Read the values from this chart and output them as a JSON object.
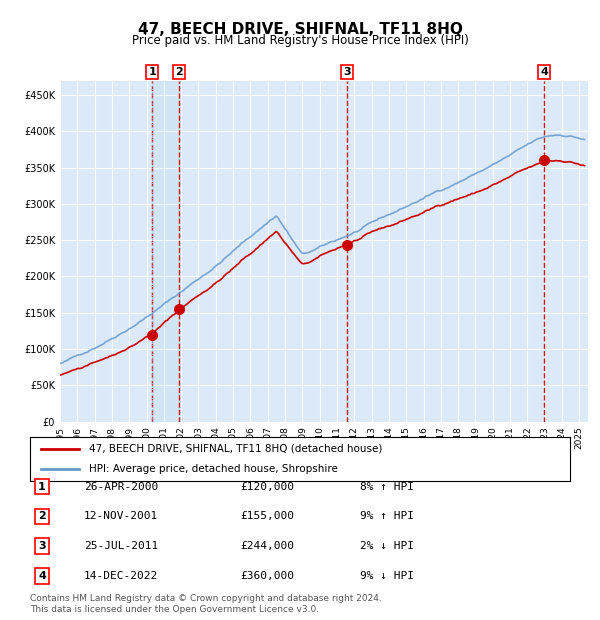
{
  "title": "47, BEECH DRIVE, SHIFNAL, TF11 8HQ",
  "subtitle": "Price paid vs. HM Land Registry's House Price Index (HPI)",
  "sale_dates_num": [
    2000.32,
    2001.87,
    2011.56,
    2022.96
  ],
  "sale_prices": [
    120000,
    155000,
    244000,
    360000
  ],
  "sale_labels": [
    "1",
    "2",
    "3",
    "4"
  ],
  "sale_info": [
    [
      "1",
      "26-APR-2000",
      "£120,000",
      "8% ↑ HPI"
    ],
    [
      "2",
      "12-NOV-2001",
      "£155,000",
      "9% ↑ HPI"
    ],
    [
      "3",
      "25-JUL-2011",
      "¤244,000",
      "2% ↓ HPI"
    ],
    [
      "4",
      "14-DEC-2022",
      "£360,000",
      "9% ↓ HPI"
    ]
  ],
  "sale_info_fixed": [
    [
      "1",
      "26-APR-2000",
      "£120,000",
      "8% ↑ HPI"
    ],
    [
      "2",
      "12-NOV-2001",
      "£155,000",
      "9% ↑ HPI"
    ],
    [
      "3",
      "25-JUL-2011",
      "£244,000",
      "2% ↓ HPI"
    ],
    [
      "4",
      "14-DEC-2022",
      "£360,000",
      "9% ↓ HPI"
    ]
  ],
  "ylim": [
    0,
    470000
  ],
  "xlim_start": 1995.0,
  "xlim_end": 2025.5,
  "background_color": "#ffffff",
  "plot_bg_color": "#dce9f8",
  "grid_color": "#ffffff",
  "red_line_color": "#cc0000",
  "blue_line_color": "#6699cc",
  "marker_color": "#cc0000",
  "dashed_line_color": "#cc0000",
  "dotted_line_color": "#aaaacc",
  "shade_color": "#dce9f8",
  "footer_text": "Contains HM Land Registry data © Crown copyright and database right 2024.\nThis data is licensed under the Open Government Licence v3.0.",
  "legend_line1": "47, BEECH DRIVE, SHIFNAL, TF11 8HQ (detached house)",
  "legend_line2": "HPI: Average price, detached house, Shropshire"
}
